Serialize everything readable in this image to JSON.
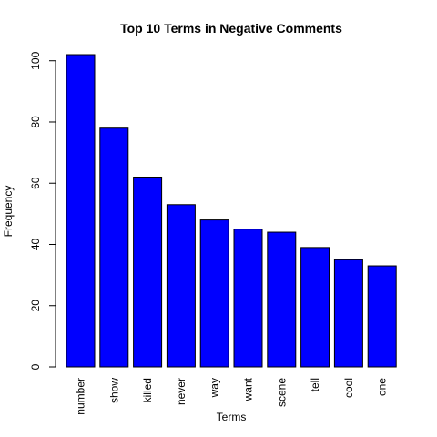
{
  "chart_data": {
    "type": "bar",
    "title": "Top 10 Terms in Negative Comments",
    "xlabel": "Terms",
    "ylabel": "Frequency",
    "categories": [
      "number",
      "show",
      "killed",
      "never",
      "way",
      "want",
      "scene",
      "tell",
      "cool",
      "one"
    ],
    "values": [
      102,
      78,
      62,
      53,
      48,
      45,
      44,
      39,
      35,
      33
    ],
    "ylim": [
      0,
      102
    ],
    "yticks": [
      0,
      20,
      40,
      60,
      80,
      100
    ],
    "bar_color": "#0000ff",
    "bar_border_color": "#000000",
    "grid": false,
    "legend": "none"
  }
}
